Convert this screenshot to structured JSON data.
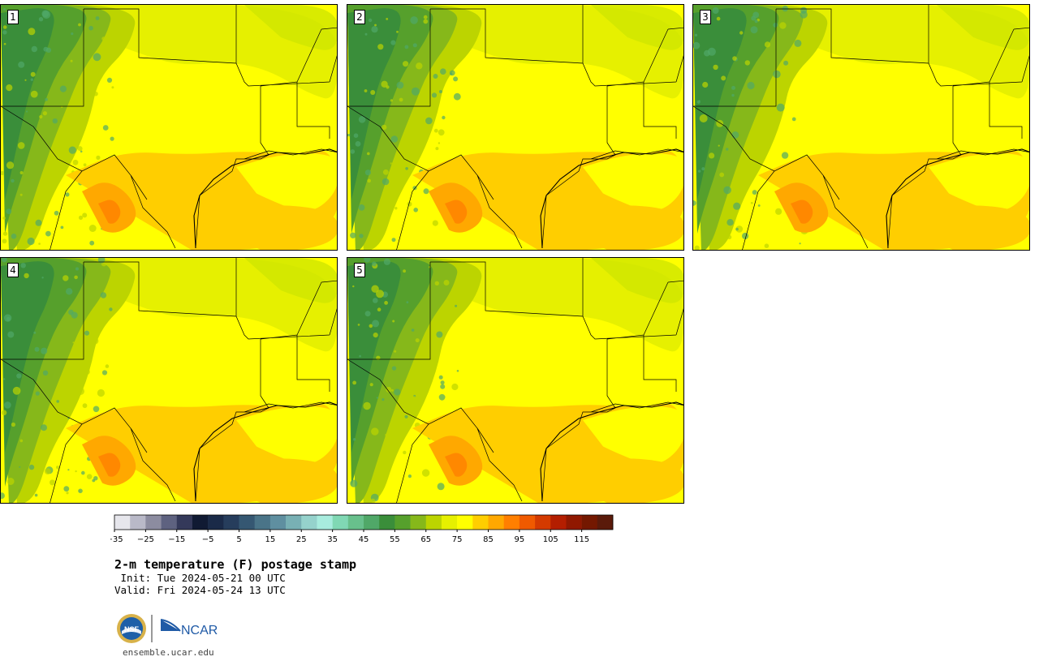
{
  "panels": [
    {
      "label": "1"
    },
    {
      "label": "2"
    },
    {
      "label": "3"
    },
    {
      "label": "4"
    },
    {
      "label": "5"
    }
  ],
  "colorbar": {
    "colors": [
      "#e6e6ec",
      "#b9b9c8",
      "#8c8ca0",
      "#5e6280",
      "#34395a",
      "#101a33",
      "#1a2a48",
      "#263d5c",
      "#355772",
      "#4a7488",
      "#5f8fa0",
      "#78b0b4",
      "#95d2cc",
      "#a8ecde",
      "#80d8b4",
      "#68c08c",
      "#50a868",
      "#3a8e3a",
      "#56a02c",
      "#86b81a",
      "#bcd400",
      "#e6f000",
      "#ffff00",
      "#ffce00",
      "#ffa800",
      "#ff7f00",
      "#f05a00",
      "#d43a00",
      "#b41e00",
      "#901800",
      "#741800",
      "#5a1a0a"
    ],
    "tick_labels": [
      "−35",
      "−25",
      "−15",
      "−5",
      "5",
      "15",
      "25",
      "35",
      "45",
      "55",
      "65",
      "75",
      "85",
      "95",
      "105",
      "115"
    ]
  },
  "title": "2-m temperature (F) postage stamp",
  "init_line": " Init: Tue 2024-05-21 00 UTC",
  "valid_line": "Valid: Fri 2024-05-24 13 UTC",
  "logos": {
    "nsf": "NSF",
    "ncar": "NCAR"
  },
  "website": "ensemble.ucar.edu"
}
